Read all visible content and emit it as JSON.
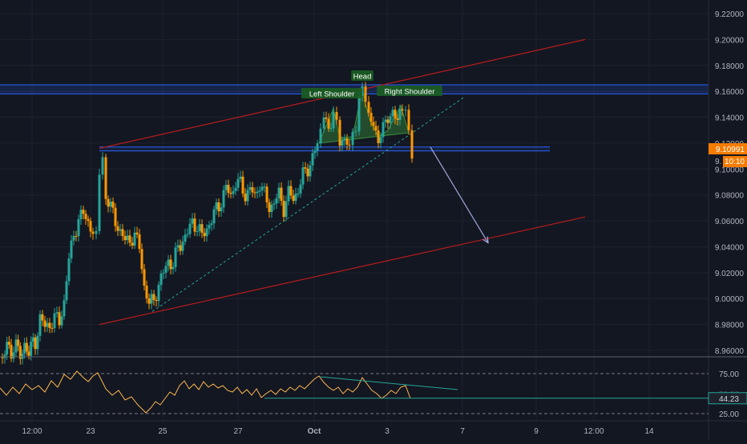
{
  "price_axis": {
    "ticks": [
      "9.22000",
      "9.20000",
      "9.18000",
      "9.16000",
      "9.14000",
      "9.12000",
      "9.10000",
      "9.08000",
      "9.06000",
      "9.04000",
      "9.02000",
      "9.00000",
      "8.98000",
      "8.96000"
    ],
    "last_price": "9.10991",
    "countdown": "10:10",
    "countdown_prefix": "9."
  },
  "time_axis": {
    "labels": [
      "12:00",
      "23",
      "25",
      "27",
      "Oct",
      "3",
      "7",
      "9",
      "12:00",
      "14"
    ]
  },
  "annotations": {
    "left_shoulder": "Left Shoulder",
    "head": "Head",
    "right_shoulder": "Right Shoulder"
  },
  "rsi_axis": {
    "ticks": [
      "75.00",
      "25.00"
    ],
    "value": "44.23",
    "hidden_label": "50.00"
  },
  "colors": {
    "background": "#131722",
    "up": "#26a69a",
    "down": "#ff9800",
    "channel": "#b71c1c",
    "zone": "#2962ff",
    "rsi": "#ffb74d",
    "rsi_trend": "#26a69a",
    "arrow": "#9fa8da",
    "badge": "#f57c00"
  },
  "chart_data": {
    "type": "candlestick",
    "y_range": [
      8.945,
      9.228
    ],
    "y_ticks": [
      9.22,
      9.2,
      9.18,
      9.16,
      9.14,
      9.12,
      9.1,
      9.08,
      9.06,
      9.04,
      9.02,
      9.0,
      8.98,
      8.96
    ],
    "close_path": [
      [
        0,
        8.955
      ],
      [
        6,
        8.962
      ],
      [
        14,
        8.96
      ],
      [
        20,
        8.963
      ],
      [
        28,
        8.958
      ],
      [
        36,
        8.962
      ],
      [
        44,
        8.966
      ],
      [
        50,
        8.985
      ],
      [
        56,
        8.978
      ],
      [
        62,
        8.98
      ],
      [
        68,
        8.985
      ],
      [
        74,
        8.982
      ],
      [
        80,
        8.998
      ],
      [
        86,
        9.03
      ],
      [
        92,
        9.05
      ],
      [
        98,
        9.06
      ],
      [
        104,
        9.066
      ],
      [
        110,
        9.06
      ],
      [
        116,
        9.05
      ],
      [
        120,
        9.048
      ],
      [
        124,
        9.1
      ],
      [
        128,
        9.11
      ],
      [
        132,
        9.08
      ],
      [
        138,
        9.07
      ],
      [
        144,
        9.06
      ],
      [
        150,
        9.052
      ],
      [
        156,
        9.044
      ],
      [
        162,
        9.046
      ],
      [
        168,
        9.048
      ],
      [
        174,
        9.04
      ],
      [
        180,
        9.01
      ],
      [
        186,
        8.995
      ],
      [
        192,
        9.0
      ],
      [
        198,
        9.01
      ],
      [
        204,
        9.02
      ],
      [
        210,
        9.03
      ],
      [
        216,
        9.025
      ],
      [
        222,
        9.04
      ],
      [
        228,
        9.045
      ],
      [
        234,
        9.05
      ],
      [
        240,
        9.06
      ],
      [
        246,
        9.055
      ],
      [
        252,
        9.048
      ],
      [
        258,
        9.055
      ],
      [
        264,
        9.06
      ],
      [
        270,
        9.07
      ],
      [
        276,
        9.075
      ],
      [
        282,
        9.085
      ],
      [
        288,
        9.08
      ],
      [
        294,
        9.09
      ],
      [
        300,
        9.088
      ],
      [
        306,
        9.08
      ],
      [
        312,
        9.085
      ],
      [
        318,
        9.078
      ],
      [
        324,
        9.09
      ],
      [
        330,
        9.08
      ],
      [
        336,
        9.07
      ],
      [
        342,
        9.075
      ],
      [
        348,
        9.08
      ],
      [
        354,
        9.07
      ],
      [
        360,
        9.082
      ],
      [
        366,
        9.076
      ],
      [
        372,
        9.085
      ],
      [
        378,
        9.095
      ],
      [
        384,
        9.1
      ],
      [
        390,
        9.11
      ],
      [
        396,
        9.118
      ],
      [
        400,
        9.125
      ],
      [
        404,
        9.14
      ],
      [
        410,
        9.13
      ],
      [
        416,
        9.146
      ],
      [
        420,
        9.138
      ],
      [
        424,
        9.125
      ],
      [
        430,
        9.118
      ],
      [
        436,
        9.12
      ],
      [
        440,
        9.125
      ],
      [
        444,
        9.13
      ],
      [
        448,
        9.15
      ],
      [
        452,
        9.162
      ],
      [
        456,
        9.15
      ],
      [
        460,
        9.14
      ],
      [
        466,
        9.132
      ],
      [
        472,
        9.125
      ],
      [
        478,
        9.13
      ],
      [
        484,
        9.14
      ],
      [
        490,
        9.145
      ],
      [
        496,
        9.135
      ],
      [
        502,
        9.15
      ],
      [
        506,
        9.148
      ],
      [
        510,
        9.128
      ],
      [
        514,
        9.11
      ]
    ],
    "channel_upper": [
      [
        124,
        9.116
      ],
      [
        730,
        9.2
      ]
    ],
    "channel_lower": [
      [
        124,
        8.98
      ],
      [
        730,
        9.063
      ]
    ],
    "neckline": [
      [
        190,
        8.99
      ],
      [
        578,
        9.155
      ]
    ],
    "horizontal_zones": [
      [
        9.158,
        9.165
      ],
      [
        9.114,
        9.117
      ]
    ],
    "pattern": {
      "left_shoulder": 9.147,
      "head": 9.162,
      "right_shoulder": 9.149
    },
    "projection_arrow": {
      "from": [
        537,
        9.117
      ],
      "to": [
        609,
        9.043
      ]
    },
    "rsi": {
      "levels": [
        75,
        25
      ],
      "current": 44.23,
      "path": [
        [
          0,
          57
        ],
        [
          8,
          48
        ],
        [
          16,
          58
        ],
        [
          24,
          50
        ],
        [
          32,
          62
        ],
        [
          40,
          55
        ],
        [
          48,
          60
        ],
        [
          56,
          52
        ],
        [
          64,
          66
        ],
        [
          72,
          58
        ],
        [
          80,
          74
        ],
        [
          88,
          68
        ],
        [
          96,
          78
        ],
        [
          104,
          70
        ],
        [
          110,
          65
        ],
        [
          116,
          72
        ],
        [
          122,
          76
        ],
        [
          126,
          68
        ],
        [
          132,
          56
        ],
        [
          140,
          48
        ],
        [
          148,
          54
        ],
        [
          156,
          42
        ],
        [
          164,
          46
        ],
        [
          172,
          36
        ],
        [
          178,
          30
        ],
        [
          182,
          26
        ],
        [
          188,
          32
        ],
        [
          194,
          40
        ],
        [
          200,
          36
        ],
        [
          206,
          44
        ],
        [
          212,
          52
        ],
        [
          218,
          48
        ],
        [
          224,
          60
        ],
        [
          230,
          66
        ],
        [
          236,
          56
        ],
        [
          242,
          62
        ],
        [
          248,
          55
        ],
        [
          254,
          65
        ],
        [
          260,
          58
        ],
        [
          266,
          62
        ],
        [
          272,
          57
        ],
        [
          278,
          60
        ],
        [
          284,
          54
        ],
        [
          290,
          52
        ],
        [
          296,
          58
        ],
        [
          302,
          50
        ],
        [
          308,
          55
        ],
        [
          314,
          48
        ],
        [
          320,
          56
        ],
        [
          326,
          45
        ],
        [
          332,
          50
        ],
        [
          338,
          54
        ],
        [
          344,
          49
        ],
        [
          350,
          56
        ],
        [
          356,
          52
        ],
        [
          362,
          58
        ],
        [
          368,
          54
        ],
        [
          374,
          60
        ],
        [
          380,
          56
        ],
        [
          386,
          62
        ],
        [
          392,
          68
        ],
        [
          398,
          72
        ],
        [
          404,
          64
        ],
        [
          410,
          58
        ],
        [
          416,
          54
        ],
        [
          422,
          58
        ],
        [
          428,
          50
        ],
        [
          434,
          56
        ],
        [
          440,
          52
        ],
        [
          446,
          58
        ],
        [
          452,
          70
        ],
        [
          458,
          62
        ],
        [
          464,
          54
        ],
        [
          470,
          50
        ],
        [
          476,
          44
        ],
        [
          482,
          48
        ],
        [
          488,
          54
        ],
        [
          494,
          50
        ],
        [
          500,
          58
        ],
        [
          506,
          60
        ],
        [
          512,
          44
        ]
      ]
    }
  }
}
